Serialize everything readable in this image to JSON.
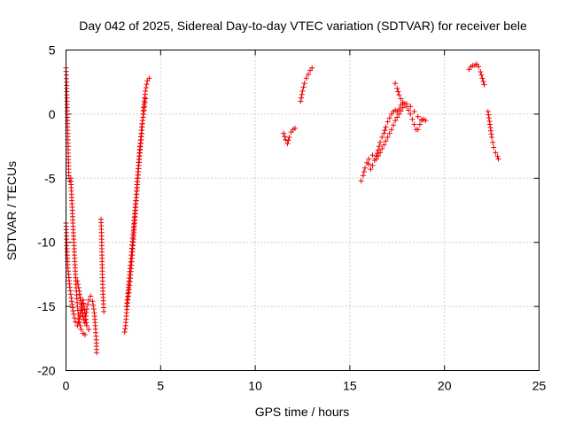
{
  "chart_data": {
    "type": "scatter",
    "title": "Day 042 of 2025, Sidereal Day-to-day VTEC variation (SDTVAR) for receiver bele",
    "xlabel": "GPS time / hours",
    "ylabel": "SDTVAR / TECUs",
    "xlim": [
      0,
      25
    ],
    "ylim": [
      -20,
      5
    ],
    "xticks": [
      0,
      5,
      10,
      15,
      20,
      25
    ],
    "yticks": [
      -20,
      -15,
      -10,
      -5,
      0,
      5
    ],
    "grid": true,
    "marker": "plus",
    "color": "#ee0000",
    "series": [
      {
        "name": "SDTVAR",
        "segments": [
          [
            [
              0.0,
              3.6
            ],
            [
              0.03,
              2.5
            ],
            [
              0.05,
              1.0
            ],
            [
              0.08,
              -0.5
            ],
            [
              0.1,
              -2.0
            ],
            [
              0.12,
              -3.3
            ],
            [
              0.15,
              -4.8
            ],
            [
              0.2,
              -5.2
            ],
            [
              0.25,
              -5.0
            ],
            [
              0.3,
              -6.5
            ],
            [
              0.35,
              -8.0
            ],
            [
              0.4,
              -9.5
            ],
            [
              0.45,
              -11.0
            ],
            [
              0.5,
              -12.5
            ],
            [
              0.55,
              -13.8
            ],
            [
              0.6,
              -15.0
            ],
            [
              0.7,
              -16.2
            ],
            [
              0.8,
              -16.8
            ],
            [
              0.9,
              -17.1
            ],
            [
              1.0,
              -17.2
            ]
          ],
          [
            [
              0.0,
              -8.5
            ],
            [
              0.05,
              -10.5
            ],
            [
              0.1,
              -12.0
            ],
            [
              0.2,
              -13.5
            ],
            [
              0.3,
              -14.6
            ],
            [
              0.4,
              -15.6
            ],
            [
              0.5,
              -16.2
            ],
            [
              0.6,
              -16.5
            ],
            [
              0.7,
              -16.0
            ],
            [
              0.8,
              -15.2
            ],
            [
              0.9,
              -14.5
            ],
            [
              1.0,
              -15.5
            ],
            [
              1.1,
              -16.5
            ],
            [
              1.2,
              -16.8
            ]
          ],
          [
            [
              0.6,
              -13.0
            ],
            [
              0.7,
              -13.8
            ],
            [
              0.8,
              -14.8
            ],
            [
              0.9,
              -15.8
            ],
            [
              1.0,
              -16.3
            ],
            [
              1.1,
              -15.2
            ],
            [
              1.2,
              -14.5
            ],
            [
              1.3,
              -14.2
            ],
            [
              1.4,
              -14.6
            ],
            [
              1.5,
              -15.5
            ],
            [
              1.55,
              -16.5
            ],
            [
              1.6,
              -17.6
            ],
            [
              1.62,
              -18.6
            ]
          ],
          [
            [
              1.85,
              -8.2
            ],
            [
              1.88,
              -9.5
            ],
            [
              1.9,
              -11.0
            ],
            [
              1.92,
              -12.5
            ],
            [
              1.95,
              -13.8
            ],
            [
              1.98,
              -14.8
            ],
            [
              2.0,
              -15.4
            ]
          ],
          [
            [
              3.1,
              -17.0
            ],
            [
              3.15,
              -16.5
            ],
            [
              3.2,
              -15.5
            ],
            [
              3.3,
              -14.2
            ],
            [
              3.4,
              -12.8
            ],
            [
              3.5,
              -11.0
            ],
            [
              3.6,
              -9.0
            ],
            [
              3.7,
              -7.0
            ],
            [
              3.8,
              -5.0
            ],
            [
              3.9,
              -3.0
            ],
            [
              4.0,
              -1.5
            ],
            [
              4.05,
              -0.5
            ],
            [
              4.1,
              0.5
            ],
            [
              4.2,
              1.8
            ],
            [
              4.3,
              2.6
            ],
            [
              4.4,
              2.8
            ]
          ],
          [
            [
              3.2,
              -15.0
            ],
            [
              3.3,
              -13.5
            ],
            [
              3.4,
              -11.8
            ],
            [
              3.5,
              -10.2
            ],
            [
              3.6,
              -8.3
            ],
            [
              3.7,
              -6.5
            ],
            [
              3.8,
              -4.5
            ],
            [
              3.9,
              -2.8
            ],
            [
              4.0,
              -1.0
            ],
            [
              4.1,
              0.0
            ],
            [
              4.2,
              1.2
            ]
          ],
          [
            [
              11.5,
              -1.5
            ],
            [
              11.6,
              -2.0
            ],
            [
              11.7,
              -2.3
            ],
            [
              11.8,
              -1.8
            ],
            [
              11.9,
              -1.4
            ],
            [
              12.0,
              -1.2
            ],
            [
              12.1,
              -1.1
            ]
          ],
          [
            [
              12.4,
              1.0
            ],
            [
              12.5,
              1.8
            ],
            [
              12.6,
              2.4
            ],
            [
              12.7,
              2.8
            ],
            [
              12.8,
              3.1
            ],
            [
              12.9,
              3.4
            ],
            [
              13.0,
              3.6
            ]
          ],
          [
            [
              15.6,
              -5.2
            ],
            [
              15.7,
              -4.8
            ],
            [
              15.8,
              -4.2
            ],
            [
              15.9,
              -3.8
            ],
            [
              16.0,
              -3.9
            ],
            [
              16.1,
              -4.3
            ],
            [
              16.2,
              -4.0
            ],
            [
              16.3,
              -3.6
            ],
            [
              16.4,
              -3.3
            ],
            [
              16.5,
              -2.8
            ],
            [
              16.6,
              -2.2
            ],
            [
              16.7,
              -1.8
            ],
            [
              16.8,
              -1.5
            ],
            [
              16.9,
              -1.0
            ],
            [
              17.0,
              -0.6
            ],
            [
              17.1,
              -0.3
            ],
            [
              17.2,
              0.0
            ],
            [
              17.3,
              0.2
            ],
            [
              17.4,
              0.3
            ],
            [
              17.5,
              0.2
            ],
            [
              17.6,
              0.4
            ],
            [
              17.7,
              0.7
            ],
            [
              17.8,
              0.9
            ],
            [
              17.9,
              0.8
            ],
            [
              18.0,
              0.6
            ],
            [
              18.1,
              0.3
            ],
            [
              18.2,
              0.0
            ],
            [
              18.3,
              -0.4
            ],
            [
              18.4,
              -0.8
            ],
            [
              18.5,
              -1.2
            ],
            [
              18.6,
              -1.2
            ],
            [
              18.7,
              -0.8
            ],
            [
              18.8,
              -0.5
            ],
            [
              18.9,
              -0.4
            ],
            [
              19.0,
              -0.5
            ]
          ],
          [
            [
              16.0,
              -3.5
            ],
            [
              16.2,
              -3.2
            ],
            [
              16.4,
              -3.5
            ],
            [
              16.6,
              -3.0
            ],
            [
              16.8,
              -2.4
            ],
            [
              17.0,
              -1.8
            ],
            [
              17.2,
              -1.2
            ],
            [
              17.4,
              -0.5
            ],
            [
              17.6,
              0.0
            ],
            [
              17.8,
              0.5
            ],
            [
              18.0,
              0.8
            ],
            [
              18.2,
              0.6
            ],
            [
              18.4,
              0.2
            ],
            [
              18.6,
              -0.2
            ],
            [
              18.8,
              -0.4
            ]
          ],
          [
            [
              17.4,
              2.4
            ],
            [
              17.5,
              2.0
            ],
            [
              17.6,
              1.5
            ],
            [
              17.7,
              1.2
            ],
            [
              17.8,
              0.9
            ]
          ],
          [
            [
              21.3,
              3.5
            ],
            [
              21.4,
              3.7
            ],
            [
              21.5,
              3.8
            ],
            [
              21.6,
              3.8
            ],
            [
              21.7,
              3.9
            ],
            [
              21.8,
              3.7
            ],
            [
              21.9,
              3.3
            ],
            [
              22.0,
              2.8
            ],
            [
              22.1,
              2.3
            ]
          ],
          [
            [
              22.3,
              0.2
            ],
            [
              22.35,
              -0.3
            ],
            [
              22.4,
              -0.8
            ],
            [
              22.45,
              -1.3
            ],
            [
              22.5,
              -1.8
            ],
            [
              22.55,
              -2.2
            ],
            [
              22.6,
              -2.6
            ],
            [
              22.7,
              -3.0
            ],
            [
              22.8,
              -3.3
            ],
            [
              22.85,
              -3.5
            ]
          ]
        ]
      }
    ]
  }
}
